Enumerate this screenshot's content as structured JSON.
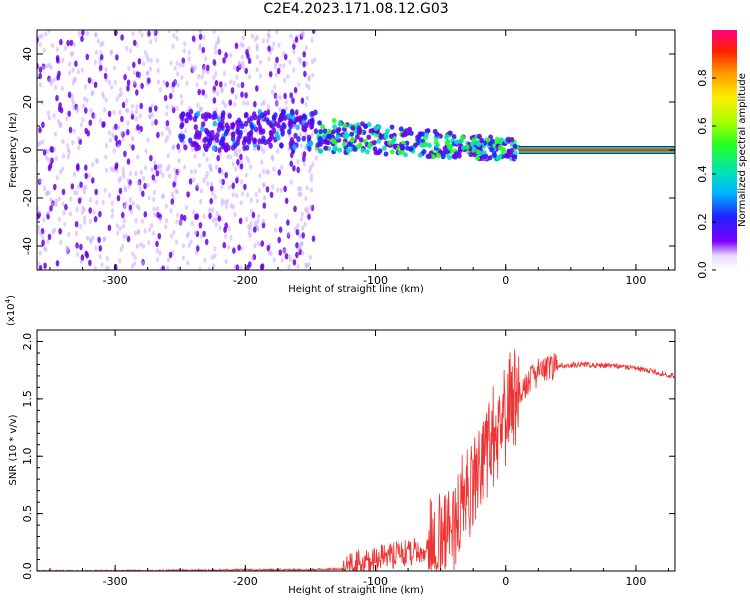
{
  "title": "C2E4.2023.171.08.12.G03",
  "colors": {
    "snr_line": "#ee3333",
    "scatter_purple": "#6a00e8",
    "scatter_light": "#c9a8ff",
    "line_red": "#ff2a2a",
    "line_green": "#22cc44"
  },
  "chart_data": [
    {
      "id": "spectrogram",
      "type": "heatmap",
      "xlabel": "Height of straight line (km)",
      "ylabel": "Frequency (Hz)",
      "xlim": [
        -360,
        130
      ],
      "ylim": [
        -50,
        50
      ],
      "x_ticks": [
        -300,
        -200,
        -100,
        0,
        100
      ],
      "y_ticks": [
        -40,
        -20,
        0,
        20,
        40
      ],
      "colorbar": {
        "label": "Normalized spectral amplitude",
        "range": [
          0.0,
          1.0
        ],
        "ticks": [
          0.0,
          0.2,
          0.4,
          0.6,
          0.8
        ]
      },
      "regions": [
        {
          "x_range": [
            -360,
            -145
          ],
          "freq_range": [
            -50,
            50
          ],
          "amplitude": 0.1,
          "description": "broadband noise"
        },
        {
          "x_range": [
            -250,
            -145
          ],
          "freq_center": 8,
          "freq_halfwidth": 8,
          "amplitude": 0.25
        },
        {
          "x_range": [
            -145,
            10
          ],
          "freq_center_start": 6,
          "freq_center_end": 0,
          "freq_halfwidth": 7,
          "amplitude": 0.5
        },
        {
          "x_range": [
            10,
            130
          ],
          "freq_center": 0,
          "amplitude": 1.0,
          "description": "narrow carrier line"
        }
      ]
    },
    {
      "id": "snr",
      "type": "line",
      "xlabel": "Height of straight line (km)",
      "ylabel": "SNR (10 * v/v)",
      "y_scale_label": "(x10",
      "y_scale_exponent": "4",
      "y_scale_suffix": ")",
      "xlim": [
        -360,
        130
      ],
      "ylim": [
        0.0,
        2.1
      ],
      "x_ticks": [
        -300,
        -200,
        -100,
        0,
        100
      ],
      "y_ticks": [
        "0.0",
        "0.5",
        "1.0",
        "1.5",
        "2.0"
      ],
      "y_tick_values": [
        0.0,
        0.5,
        1.0,
        1.5,
        2.0
      ],
      "series": [
        {
          "x": [
            -360,
            -300,
            -200,
            -150,
            -125,
            -115,
            -100,
            -80,
            -60,
            -45,
            -35,
            -25,
            -18,
            -12,
            -5,
            5,
            15,
            25,
            40,
            60,
            80,
            100,
            120,
            130
          ],
          "y": [
            0.0,
            0.0,
            0.01,
            0.01,
            0.02,
            0.06,
            0.1,
            0.15,
            0.2,
            0.28,
            0.55,
            0.8,
            0.9,
            1.1,
            1.3,
            1.45,
            1.62,
            1.73,
            1.79,
            1.8,
            1.79,
            1.77,
            1.72,
            1.7
          ]
        }
      ]
    }
  ]
}
